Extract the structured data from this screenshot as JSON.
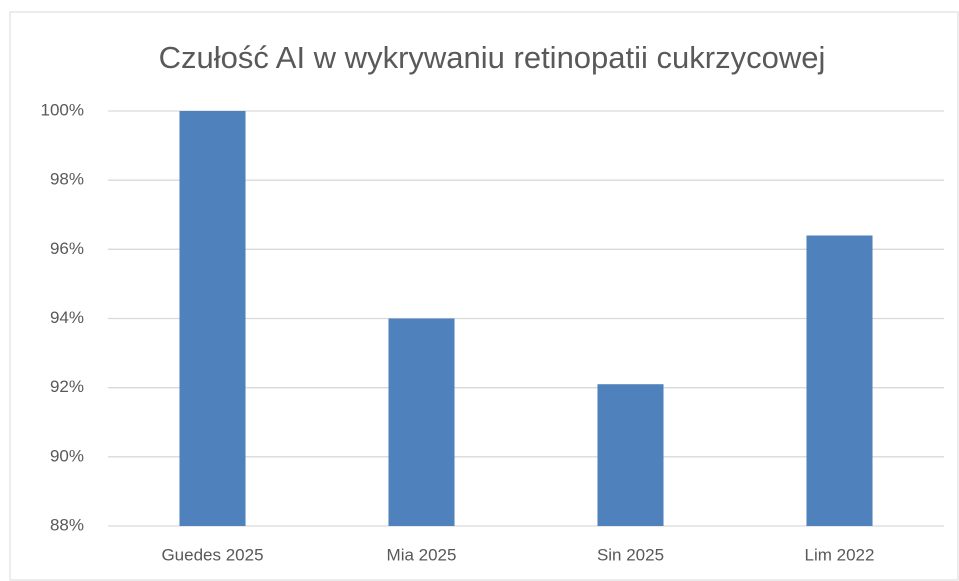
{
  "chart_data": {
    "type": "bar",
    "title": "Czułość AI w wykrywaniu retinopatii cukrzycowej",
    "categories": [
      "Guedes 2025",
      "Mia 2025",
      "Sin 2025",
      "Lim 2022"
    ],
    "values": [
      100,
      94,
      92.1,
      96.4
    ],
    "color": "#4f81bd",
    "ylim": [
      88,
      100
    ],
    "yticks": [
      {
        "value": 88,
        "label": "88%"
      },
      {
        "value": 90,
        "label": "90%"
      },
      {
        "value": 92,
        "label": "92%"
      },
      {
        "value": 94,
        "label": "94%"
      },
      {
        "value": 96,
        "label": "96%"
      },
      {
        "value": 98,
        "label": "98%"
      },
      {
        "value": 100,
        "label": "100%"
      }
    ],
    "grid": true
  }
}
